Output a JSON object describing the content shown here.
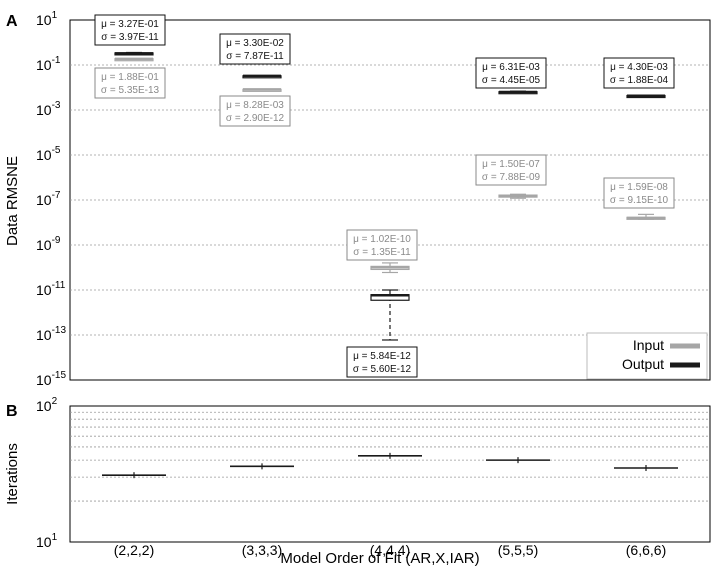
{
  "panel_labels": {
    "a": "A",
    "b": "B"
  },
  "colors": {
    "input": "#a6a6a6",
    "output": "#1a1a1a",
    "grid": "#9a9a9a"
  },
  "chart_data": [
    {
      "type": "box",
      "panel": "A",
      "ylabel": "Data RMSNE",
      "yscale": "log",
      "ylim_exp": [
        -15,
        1
      ],
      "ytick_exponents": [
        1,
        -1,
        -3,
        -5,
        -7,
        -9,
        -11,
        -13,
        -15
      ],
      "legend": {
        "placement": "bottom-right",
        "entries": [
          "Input",
          "Output"
        ]
      },
      "categories": [
        "(2,2,2)",
        "(3,3,3)",
        "(4,4,4)",
        "(5,5,5)",
        "(6,6,6)"
      ],
      "series": [
        {
          "name": "Input",
          "median": [
            0.188,
            0.00828,
            1.02e-10,
            1.5e-07,
            1.59e-08
          ],
          "q1": [
            0.186,
            0.00826,
            8.2e-11,
            1.35e-07,
            1.5e-08
          ],
          "q3": [
            0.19,
            0.0083,
            1.12e-10,
            1.65e-07,
            1.7e-08
          ],
          "whisker_low": [
            0.185,
            0.00825,
            6e-11,
            1.2e-07,
            1.4e-08
          ],
          "whisker_high": [
            0.192,
            0.0083,
            1.6e-10,
            1.8e-07,
            2.3e-08
          ],
          "annotations": [
            {
              "mu": "μ = 1.88E-01",
              "sigma": "σ = 5.35E-13"
            },
            {
              "mu": "μ = 8.28E-03",
              "sigma": "σ = 2.90E-12"
            },
            {
              "mu": "μ = 1.02E-10",
              "sigma": "σ = 1.35E-11"
            },
            {
              "mu": "μ = 1.50E-07",
              "sigma": "σ = 7.88E-09"
            },
            {
              "mu": "μ = 1.59E-08",
              "sigma": "σ = 9.15E-10"
            }
          ]
        },
        {
          "name": "Output",
          "median": [
            0.327,
            0.033,
            5.84e-12,
            0.00631,
            0.0043
          ],
          "q1": [
            0.3,
            0.0329,
            3.5e-12,
            0.0061,
            0.0042
          ],
          "q3": [
            0.345,
            0.0331,
            6.2e-12,
            0.0065,
            0.0044
          ],
          "whisker_low": [
            0.29,
            0.0329,
            6e-14,
            0.0058,
            0.0041
          ],
          "whisker_high": [
            0.36,
            0.0331,
            1e-11,
            0.0069,
            0.0045
          ],
          "annotations": [
            {
              "mu": "μ = 3.27E-01",
              "sigma": "σ = 3.97E-11"
            },
            {
              "mu": "μ = 3.30E-02",
              "sigma": "σ = 7.87E-11"
            },
            {
              "mu": "μ = 5.84E-12",
              "sigma": "σ = 5.60E-12"
            },
            {
              "mu": "μ = 6.31E-03",
              "sigma": "σ = 4.45E-05"
            },
            {
              "mu": "μ = 4.30E-03",
              "sigma": "σ = 1.88E-04"
            }
          ]
        }
      ]
    },
    {
      "type": "box",
      "panel": "B",
      "ylabel": "Iterations",
      "yscale": "log",
      "ylim": [
        10,
        100
      ],
      "ytick_exponents": [
        1,
        2
      ],
      "xlabel": "Model Order of Fit (AR,X,IAR)",
      "categories": [
        "(2,2,2)",
        "(3,3,3)",
        "(4,4,4)",
        "(5,5,5)",
        "(6,6,6)"
      ],
      "series": [
        {
          "name": "Output",
          "median": [
            31,
            36,
            43,
            40,
            35
          ]
        }
      ]
    }
  ]
}
